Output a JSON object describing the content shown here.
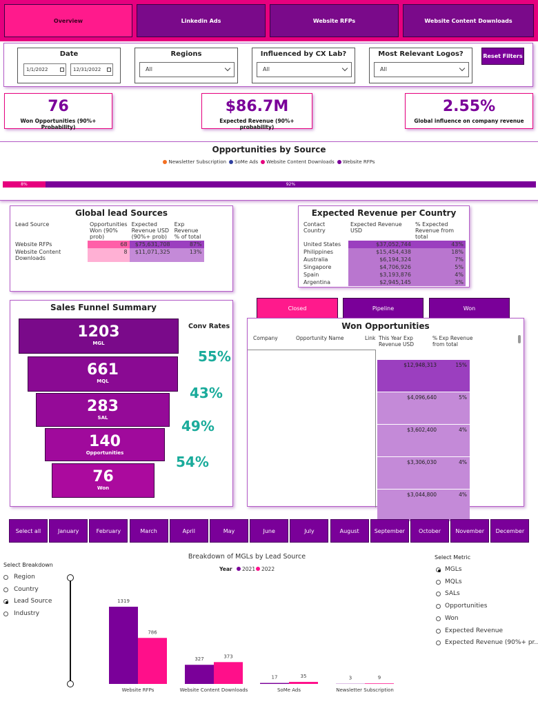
{
  "tabs": [
    "Overview",
    "Linkedin Ads",
    "Website RFPs",
    "Website Content Downloads"
  ],
  "filters": {
    "date": {
      "label": "Date",
      "start": "1/1/2022",
      "end": "12/31/2022"
    },
    "regions": {
      "label": "Regions",
      "value": "All"
    },
    "cx_lab": {
      "label": "Influenced by CX Lab?",
      "value": "All"
    },
    "logos": {
      "label": "Most Relevant Logos?",
      "value": "All"
    },
    "reset": "Reset Filters"
  },
  "kpis": [
    {
      "value": "76",
      "label": "Won Opportunities (90%+ Probability)"
    },
    {
      "value": "$86.7M",
      "label": "Expected Revenue (90%+ probability)"
    },
    {
      "value": "2.55%",
      "label": "Global influence on company revenue"
    }
  ],
  "source_bar": {
    "title": "Opportunities by Source",
    "legend": [
      {
        "name": "Newsletter Subscription",
        "color": "#f36f21"
      },
      {
        "name": "SoMe Ads",
        "color": "#2f3f9f"
      },
      {
        "name": "Website Content Downloads",
        "color": "#e6007e"
      },
      {
        "name": "Website RFPs",
        "color": "#7a0099"
      }
    ],
    "segments": [
      {
        "value": 8,
        "label": "8%",
        "color": "#e6007e"
      },
      {
        "value": 92,
        "label": "92%",
        "color": "#7a0099"
      }
    ]
  },
  "lead_sources": {
    "title": "Global lead Sources",
    "headers": [
      "Lead Source",
      "Opportunities Won (90% prob)",
      "Expected Revenue USD (90%+ prob)",
      "Exp Revenue % of total"
    ],
    "rows": [
      [
        "Website RFPs",
        "68",
        "$75,631,708",
        "87%"
      ],
      [
        "Website Content Downloads",
        "8",
        "$11,071,325",
        "13%"
      ]
    ]
  },
  "country_revenue": {
    "title": "Expected Revenue per Country",
    "headers": [
      "Contact Country",
      "Expected Revenue USD",
      "% Expected Revenue from total"
    ],
    "rows": [
      [
        "United States",
        "$37,052,744",
        "43%"
      ],
      [
        "Philippines",
        "$15,454,438",
        "18%"
      ],
      [
        "Australia",
        "$6,194,324",
        "7%"
      ],
      [
        "Singapore",
        "$4,706,926",
        "5%"
      ],
      [
        "Spain",
        "$3,193,876",
        "4%"
      ],
      [
        "Argentina",
        "$2,945,145",
        "3%"
      ]
    ]
  },
  "funnel": {
    "title": "Sales Funnel Summary",
    "stages": [
      {
        "value": "1203",
        "label": "MGL"
      },
      {
        "value": "661",
        "label": "MQL"
      },
      {
        "value": "283",
        "label": "SAL"
      },
      {
        "value": "140",
        "label": "Opportunities"
      },
      {
        "value": "76",
        "label": "Won"
      }
    ],
    "conv_title": "Conv Rates",
    "conv_rates": [
      "55%",
      "43%",
      "49%",
      "54%"
    ]
  },
  "status_buttons": [
    "Closed",
    "Pipeline",
    "Won"
  ],
  "won_opportunities": {
    "title": "Won Opportunities",
    "headers": [
      "Company",
      "Opportunity Name",
      "Link",
      "This Year Exp Revenue USD",
      "% Exp Revenue from total"
    ],
    "rows": [
      [
        "$12,948,313",
        "15%"
      ],
      [
        "$4,096,640",
        "5%"
      ],
      [
        "$3,602,400",
        "4%"
      ],
      [
        "$3,306,030",
        "4%"
      ],
      [
        "$3,044,800",
        "4%"
      ]
    ]
  },
  "months": [
    "Select all",
    "January",
    "February",
    "March",
    "April",
    "May",
    "June",
    "July",
    "August",
    "September",
    "October",
    "November",
    "December"
  ],
  "breakdown": {
    "title": "Select Breakdown",
    "options": [
      "Region",
      "Country",
      "Lead Source",
      "Industry"
    ],
    "selected": 2
  },
  "metric": {
    "title": "Select Metric",
    "options": [
      "MGLs",
      "MQLs",
      "SALs",
      "Opportunities",
      "Won",
      "Expected Revenue",
      "Expected Revenue (90%+ pr..."
    ],
    "selected": 0
  },
  "chart_data": {
    "type": "bar",
    "title": "Breakdown of MGLs by Lead Source",
    "legend_title": "Year",
    "categories": [
      "Website RFPs",
      "Website Content Downloads",
      "SoMe Ads",
      "Newsletter Subscription"
    ],
    "series": [
      {
        "name": "2021",
        "color": "#7a0099",
        "values": [
          1319,
          327,
          17,
          3
        ]
      },
      {
        "name": "2022",
        "color": "#ff0f8a",
        "values": [
          786,
          373,
          35,
          9
        ]
      }
    ]
  }
}
